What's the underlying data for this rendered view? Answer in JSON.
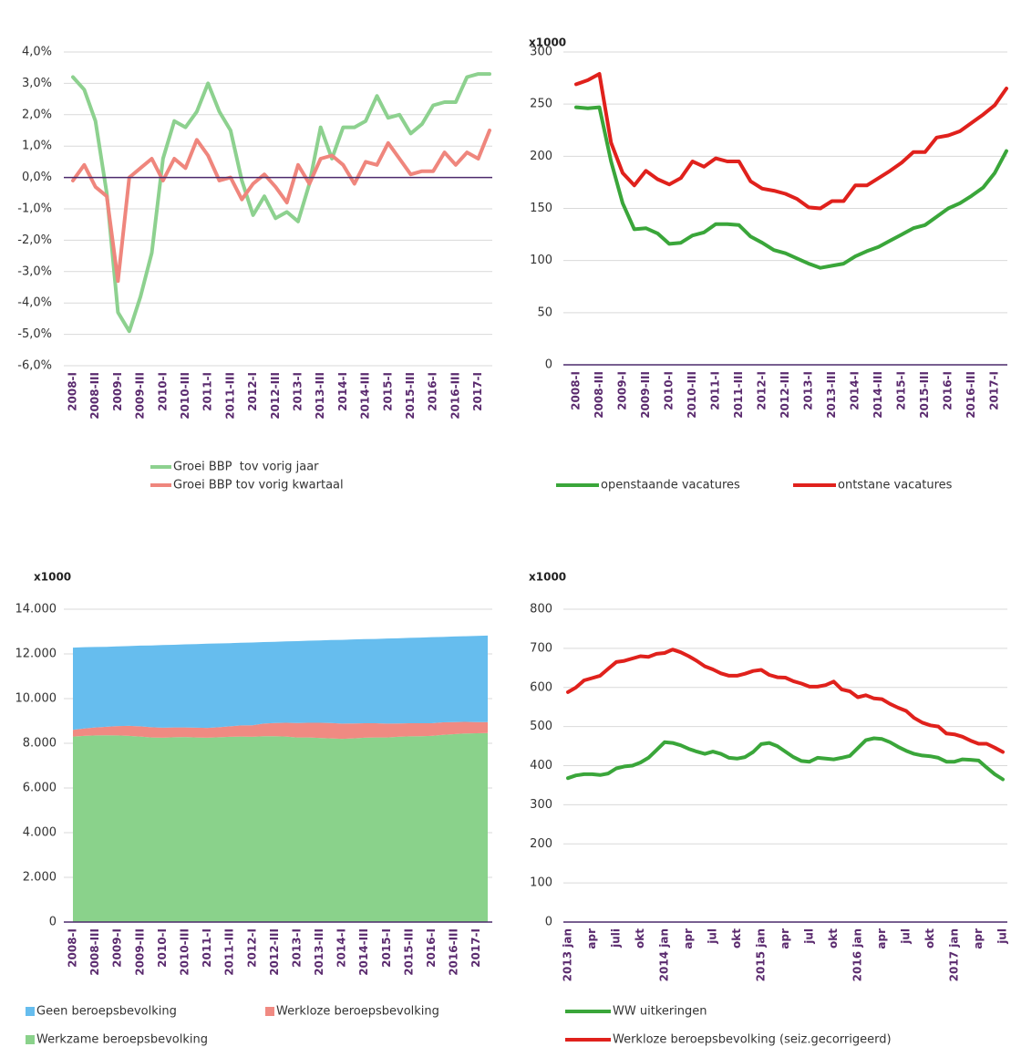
{
  "chart_data": [
    {
      "type": "line",
      "categories": [
        "2008-I",
        null,
        "2008-III",
        null,
        "2009-I",
        null,
        "2009-III",
        null,
        "2010-I",
        null,
        "2010-III",
        null,
        "2011-I",
        null,
        "2011-III",
        null,
        "2012-I",
        null,
        "2012-III",
        null,
        "2013-I",
        null,
        "2013-III",
        null,
        "2014-I",
        null,
        "2014-III",
        null,
        "2015-I",
        null,
        "2015-III",
        null,
        "2016-I",
        null,
        "2016-III",
        null,
        "2017-I",
        null
      ],
      "series": [
        {
          "name": "Groei BBP  tov vorig jaar",
          "color": "#8dd18f",
          "values": [
            3.2,
            2.8,
            1.8,
            -0.5,
            -4.3,
            -4.9,
            -3.8,
            -2.4,
            0.6,
            1.8,
            1.6,
            2.1,
            3.0,
            2.1,
            1.5,
            -0.1,
            -1.2,
            -0.6,
            -1.3,
            -1.1,
            -1.4,
            -0.2,
            1.6,
            0.6,
            1.6,
            1.6,
            1.8,
            2.6,
            1.9,
            2.0,
            1.4,
            1.7,
            2.3,
            2.4,
            2.4,
            3.2,
            3.3,
            3.3
          ]
        },
        {
          "name": "Groei BBP tov vorig kwartaal",
          "color": "#ef867d",
          "values": [
            -0.1,
            0.4,
            -0.3,
            -0.6,
            -3.3,
            0.0,
            0.3,
            0.6,
            -0.1,
            0.6,
            0.3,
            1.2,
            0.7,
            -0.1,
            0.0,
            -0.7,
            -0.2,
            0.1,
            -0.3,
            -0.8,
            0.4,
            -0.2,
            0.6,
            0.7,
            0.4,
            -0.2,
            0.5,
            0.4,
            1.1,
            0.6,
            0.1,
            0.2,
            0.2,
            0.8,
            0.4,
            0.8,
            0.6,
            1.5
          ]
        }
      ],
      "ylim": [
        -6,
        4
      ],
      "yticks": [
        {
          "value": -6,
          "label": "-6,0%"
        },
        {
          "value": -5,
          "label": "-5,0%"
        },
        {
          "value": -4,
          "label": "-4,0%"
        },
        {
          "value": -3,
          "label": "-3,0%"
        },
        {
          "value": -2,
          "label": "-2,0%"
        },
        {
          "value": -1,
          "label": "-1,0%"
        },
        {
          "value": 0,
          "label": "0,0%"
        },
        {
          "value": 1,
          "label": "1,0%"
        },
        {
          "value": 2,
          "label": "2,0%"
        },
        {
          "value": 3,
          "label": "3,0%"
        },
        {
          "value": 4,
          "label": "4,0%"
        }
      ],
      "grid": true
    },
    {
      "type": "line",
      "ylabel": "x1000",
      "categories": [
        "2008-I",
        null,
        "2008-III",
        null,
        "2009-I",
        null,
        "2009-III",
        null,
        "2010-I",
        null,
        "2010-III",
        null,
        "2011-I",
        null,
        "2011-III",
        null,
        "2012-I",
        null,
        "2012-III",
        null,
        "2013-I",
        null,
        "2013-III",
        null,
        "2014-I",
        null,
        "2014-III",
        null,
        "2015-I",
        null,
        "2015-III",
        null,
        "2016-I",
        null,
        "2016-III",
        null,
        "2017-I",
        null
      ],
      "series": [
        {
          "name": "openstaande vacatures",
          "color": "#3aa63a",
          "values": [
            247,
            246,
            247,
            195,
            155,
            130,
            131,
            126,
            116,
            117,
            124,
            127,
            135,
            135,
            134,
            123,
            117,
            110,
            107,
            102,
            97,
            93,
            95,
            97,
            104,
            109,
            113,
            119,
            125,
            131,
            134,
            142,
            150,
            155,
            162,
            170,
            184,
            205
          ]
        },
        {
          "name": "ontstane vacatures",
          "color": "#e0211c",
          "values": [
            269,
            273,
            279,
            213,
            184,
            172,
            186,
            178,
            173,
            179,
            195,
            190,
            198,
            195,
            195,
            176,
            169,
            167,
            164,
            159,
            151,
            150,
            157,
            157,
            172,
            172,
            179,
            186,
            194,
            204,
            204,
            218,
            220,
            224,
            232,
            240,
            249,
            265
          ]
        }
      ],
      "ylim": [
        0,
        300
      ],
      "yticks": [
        0,
        50,
        100,
        150,
        200,
        250,
        300
      ],
      "grid": true
    },
    {
      "type": "area",
      "ylabel": "x1000",
      "categories": [
        "2008-I",
        null,
        "2008-III",
        null,
        "2009-I",
        null,
        "2009-III",
        null,
        "2010-I",
        null,
        "2010-III",
        null,
        "2011-I",
        null,
        "2011-III",
        null,
        "2012-I",
        null,
        "2012-III",
        null,
        "2013-I",
        null,
        "2013-III",
        null,
        "2014-I",
        null,
        "2014-III",
        null,
        "2015-I",
        null,
        "2015-III",
        null,
        "2016-I",
        null,
        "2016-III",
        null,
        "2017-I",
        null
      ],
      "series": [
        {
          "name": "Geen beroepsbevolking",
          "color": "#66bdee",
          "values": [
            3680,
            3640,
            3600,
            3580,
            3570,
            3570,
            3610,
            3660,
            3700,
            3700,
            3720,
            3740,
            3770,
            3750,
            3720,
            3700,
            3700,
            3650,
            3630,
            3640,
            3660,
            3670,
            3680,
            3710,
            3750,
            3760,
            3760,
            3770,
            3810,
            3810,
            3820,
            3830,
            3850,
            3820,
            3830,
            3830,
            3860,
            3870
          ]
        },
        {
          "name": "Werkloze beroepsbevolking",
          "color": "#f08a82",
          "values": [
            300,
            330,
            360,
            380,
            420,
            450,
            460,
            460,
            450,
            440,
            430,
            440,
            440,
            450,
            470,
            500,
            520,
            560,
            590,
            620,
            650,
            660,
            680,
            690,
            680,
            670,
            650,
            640,
            620,
            600,
            590,
            580,
            570,
            560,
            540,
            520,
            500,
            490
          ]
        },
        {
          "name": "Werkzame beroepsbevolking",
          "color": "#8ad28b",
          "values": [
            8300,
            8330,
            8350,
            8360,
            8350,
            8330,
            8300,
            8260,
            8250,
            8270,
            8280,
            8260,
            8250,
            8270,
            8290,
            8300,
            8290,
            8320,
            8320,
            8300,
            8260,
            8260,
            8240,
            8220,
            8200,
            8220,
            8250,
            8260,
            8260,
            8290,
            8310,
            8320,
            8330,
            8380,
            8410,
            8440,
            8450,
            8460
          ]
        }
      ],
      "stacked": true,
      "ylim": [
        0,
        14000
      ],
      "yticks": [
        0,
        {
          "value": 2000,
          "label": "2.000"
        },
        {
          "value": 4000,
          "label": "4.000"
        },
        {
          "value": 6000,
          "label": "6.000"
        },
        {
          "value": 8000,
          "label": "8.000"
        },
        {
          "value": 10000,
          "label": "10.000"
        },
        {
          "value": 12000,
          "label": "12.000"
        },
        {
          "value": 14000,
          "label": "14.000"
        }
      ],
      "grid": true
    },
    {
      "type": "line",
      "ylabel": "x1000",
      "categories": [
        "2013 jan",
        null,
        null,
        "apr",
        null,
        null,
        "juli",
        null,
        null,
        "okt",
        null,
        null,
        "2014 jan",
        null,
        null,
        "apr",
        null,
        null,
        "jul",
        null,
        null,
        "okt",
        null,
        null,
        "2015 jan",
        null,
        null,
        "apr",
        null,
        null,
        "jul",
        null,
        null,
        "okt",
        null,
        null,
        "2016 jan",
        null,
        null,
        "apr",
        null,
        null,
        "jul",
        null,
        null,
        "okt",
        null,
        null,
        "2017 jan",
        null,
        null,
        "apr",
        null,
        null,
        "jul"
      ],
      "series": [
        {
          "name": "WW uitkeringen",
          "color": "#3aa63a",
          "values": [
            368,
            375,
            378,
            378,
            376,
            380,
            393,
            398,
            400,
            408,
            420,
            440,
            460,
            458,
            452,
            443,
            436,
            430,
            436,
            430,
            420,
            418,
            422,
            435,
            455,
            458,
            450,
            436,
            422,
            412,
            410,
            420,
            418,
            416,
            420,
            425,
            445,
            465,
            470,
            468,
            460,
            448,
            438,
            430,
            426,
            424,
            420,
            410,
            410,
            416,
            415,
            413,
            395,
            378,
            365
          ]
        },
        {
          "name": "Werkloze beroepsbevolking (seiz.gecorrigeerd)",
          "color": "#e0211c",
          "values": [
            588,
            600,
            618,
            624,
            630,
            648,
            665,
            668,
            674,
            680,
            678,
            686,
            688,
            697,
            690,
            680,
            668,
            654,
            646,
            636,
            630,
            630,
            635,
            642,
            645,
            632,
            626,
            625,
            616,
            610,
            602,
            602,
            606,
            615,
            595,
            590,
            575,
            580,
            572,
            570,
            558,
            548,
            540,
            522,
            510,
            503,
            500,
            482,
            480,
            474,
            464,
            456,
            456,
            446,
            435
          ]
        }
      ],
      "ylim": [
        0,
        800
      ],
      "yticks": [
        0,
        100,
        200,
        300,
        400,
        500,
        600,
        700,
        800
      ],
      "grid": true
    }
  ]
}
